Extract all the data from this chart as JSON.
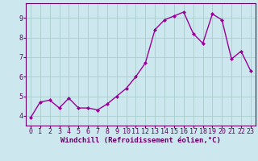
{
  "x": [
    0,
    1,
    2,
    3,
    4,
    5,
    6,
    7,
    8,
    9,
    10,
    11,
    12,
    13,
    14,
    15,
    16,
    17,
    18,
    19,
    20,
    21,
    22,
    23
  ],
  "y": [
    3.9,
    4.7,
    4.8,
    4.4,
    4.9,
    4.4,
    4.4,
    4.3,
    4.6,
    5.0,
    5.4,
    6.0,
    6.7,
    8.4,
    8.9,
    9.1,
    9.3,
    8.2,
    7.7,
    9.2,
    8.9,
    6.9,
    7.3,
    6.3
  ],
  "line_color": "#990099",
  "marker": "D",
  "marker_size": 2.0,
  "line_width": 1.0,
  "bg_color": "#cce8ee",
  "grid_color": "#aacccc",
  "xlabel": "Windchill (Refroidissement éolien,°C)",
  "xlabel_fontsize": 6.5,
  "xlabel_color": "#660066",
  "tick_color": "#660066",
  "ylim": [
    3.5,
    9.75
  ],
  "xlim": [
    -0.5,
    23.5
  ],
  "yticks": [
    4,
    5,
    6,
    7,
    8,
    9
  ],
  "xticks": [
    0,
    1,
    2,
    3,
    4,
    5,
    6,
    7,
    8,
    9,
    10,
    11,
    12,
    13,
    14,
    15,
    16,
    17,
    18,
    19,
    20,
    21,
    22,
    23
  ],
  "tick_fontsize": 6.0,
  "spine_color": "#660066"
}
